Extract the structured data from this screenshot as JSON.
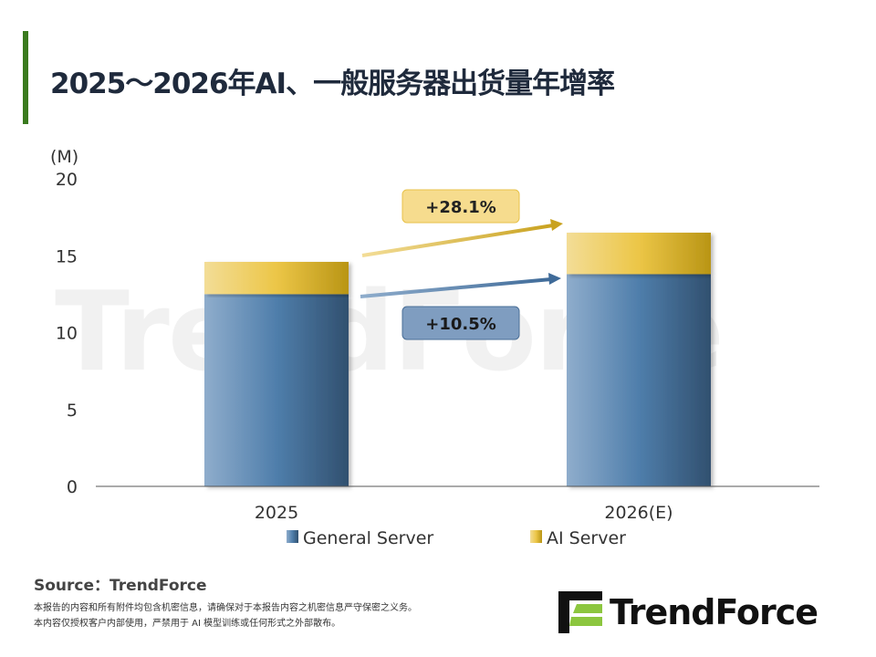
{
  "title": "2025～2026年AI、一般服务器出货量年增率",
  "chart_data": {
    "type": "bar",
    "stacked": true,
    "categories": [
      "2025",
      "2026(E)"
    ],
    "series": [
      {
        "name": "General Server",
        "values": [
          12.5,
          13.8
        ],
        "color": "#4a77a8"
      },
      {
        "name": "AI Server",
        "values": [
          2.1,
          2.7
        ],
        "color": "#e8c24a"
      }
    ],
    "ylabel": "(M)",
    "ylim": [
      0,
      20
    ],
    "yticks": [
      0,
      5,
      10,
      15,
      20
    ],
    "legend": "bottom",
    "annotations": [
      {
        "text": "+28.1%",
        "series": "AI Server"
      },
      {
        "text": "+10.5%",
        "series": "General Server"
      }
    ]
  },
  "footer": {
    "source": "Source：TrendForce",
    "note1": "本报告的内容和所有附件均包含机密信息，请确保对于本报告内容之机密信息严守保密之义务。",
    "note2": "本内容仅授权客户内部使用，严禁用于 AI 模型训练或任何形式之外部散布。",
    "logo": "TrendForce"
  }
}
